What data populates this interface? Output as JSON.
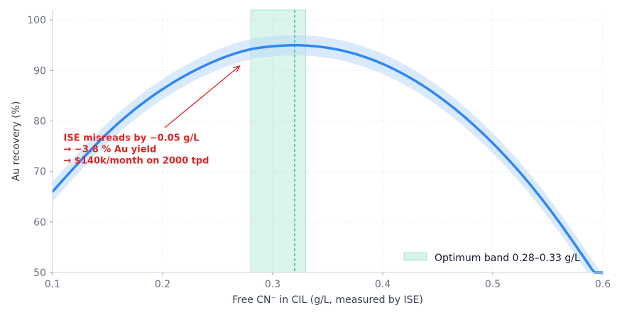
{
  "chart_data": {
    "type": "line",
    "title": "",
    "xlabel": "Free CN⁻ in CIL (g/L, measured by ISE)",
    "ylabel": "Au recovery (%)",
    "xlim": [
      0.1,
      0.6
    ],
    "ylim": [
      50,
      102
    ],
    "x_ticks": [
      "0.1",
      "0.2",
      "0.3",
      "0.4",
      "0.5",
      "0.6"
    ],
    "y_ticks": [
      "50",
      "60",
      "70",
      "80",
      "90",
      "100"
    ],
    "grid": true,
    "legend_position": "bottom-right",
    "series": [
      {
        "x": [
          0.1,
          0.15,
          0.2,
          0.25,
          0.28,
          0.3,
          0.32,
          0.35,
          0.4,
          0.45,
          0.5,
          0.55,
          0.6
        ],
        "values": [
          66.0,
          77.6,
          86.3,
          92.1,
          94.2,
          94.8,
          95.0,
          94.5,
          91.3,
          85.0,
          75.6,
          63.0,
          47.4
        ],
        "band": 2.0,
        "color": "#2f87f5",
        "band_color": "#bcd9fb"
      }
    ],
    "optimum_band": {
      "from": 0.28,
      "to": 0.33,
      "label": "Optimum band 0.28–0.33 g/L",
      "color": "#34c796"
    },
    "optimum_line": {
      "x": 0.32,
      "color": "#10a37f"
    },
    "annotation": {
      "lines": [
        "ISE misreads by −0.05 g/L",
        "→ −3.8 % Au yield",
        "→ $140k/month on 2000 tpd"
      ],
      "arrow_target": {
        "x": 0.27,
        "y": 90.9
      },
      "text_anchor": {
        "x": 0.11,
        "y": 76.8
      },
      "color": "#dc2626"
    }
  }
}
